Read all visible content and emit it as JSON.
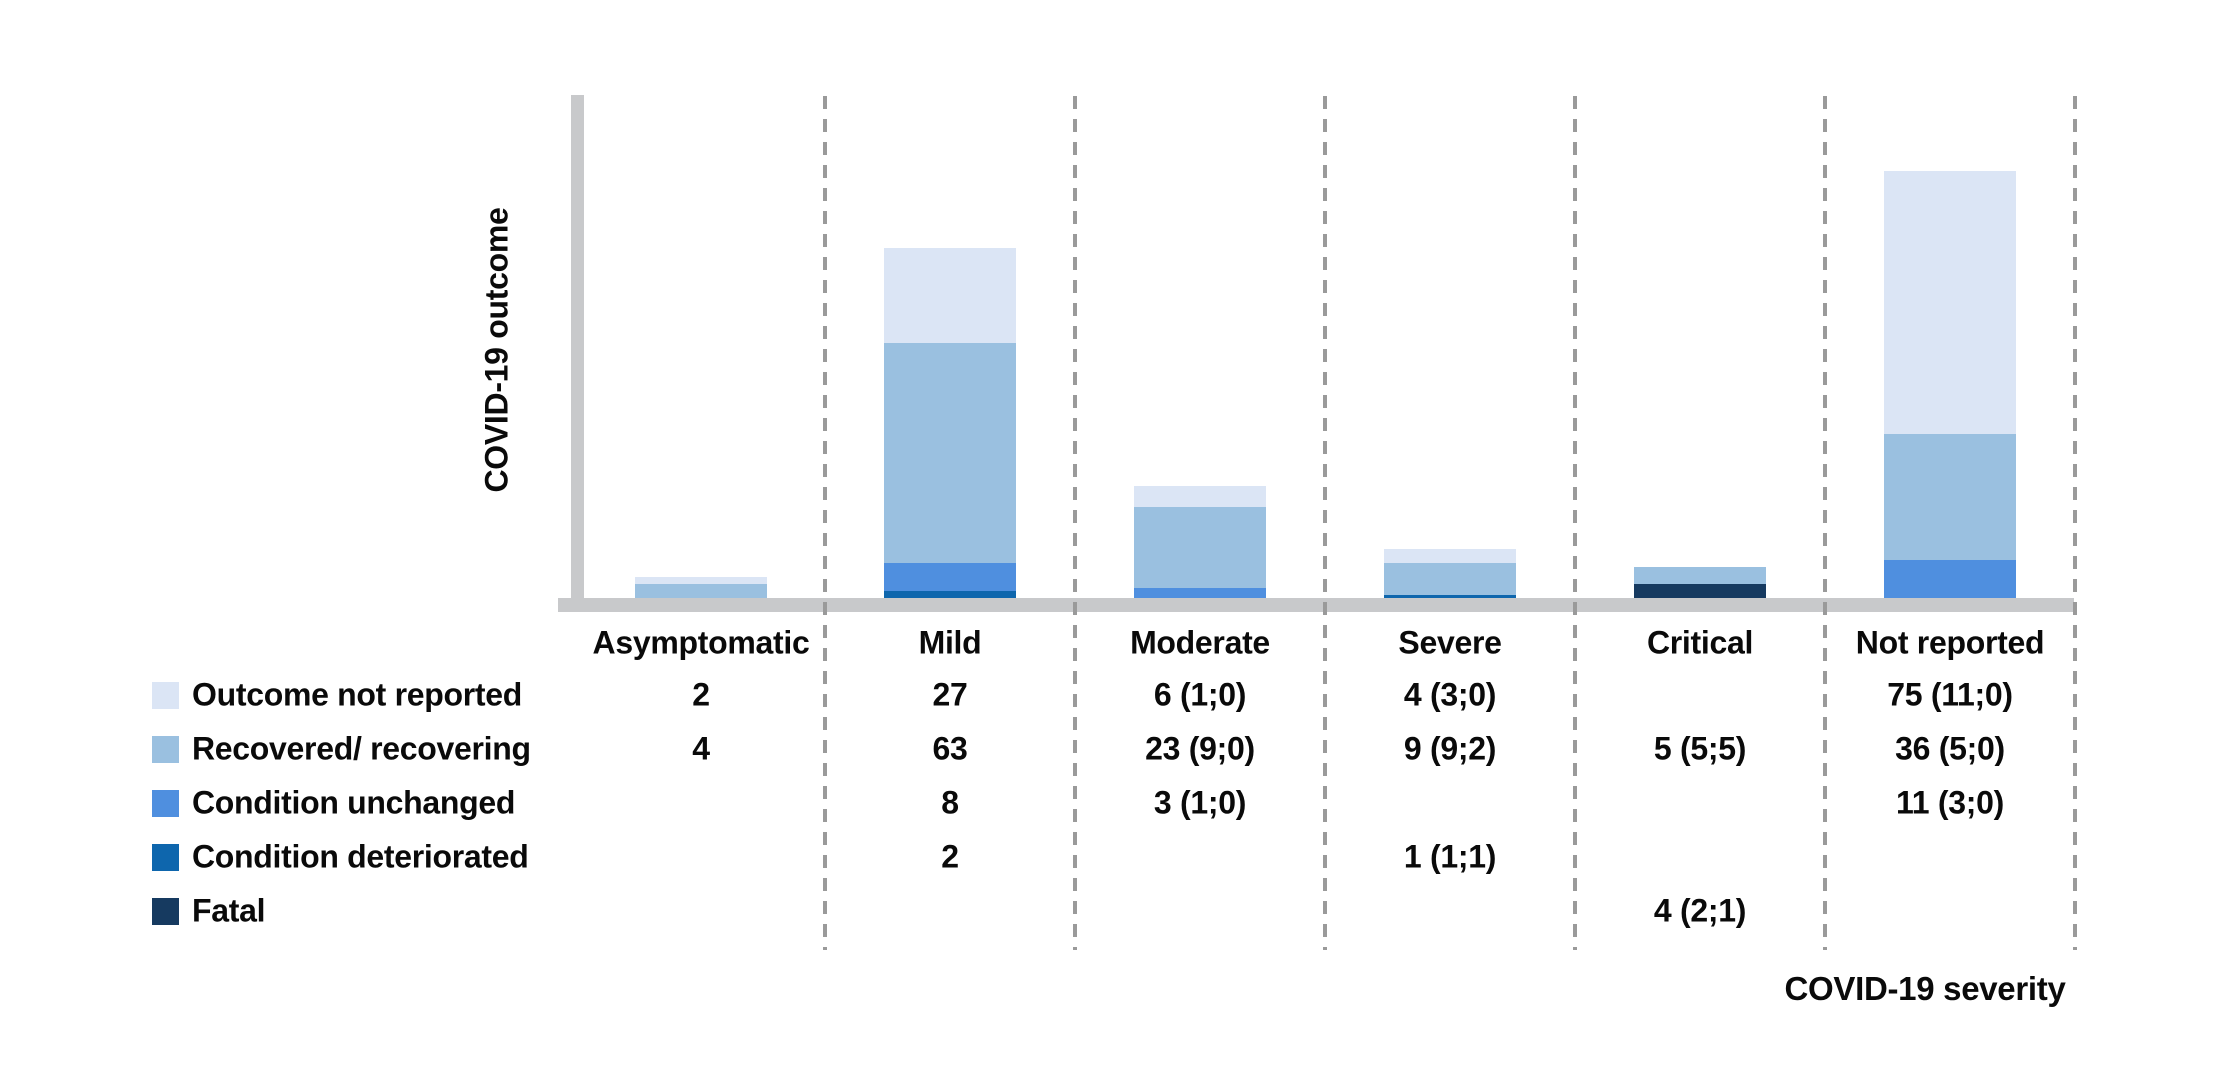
{
  "chart": {
    "y_axis_label": "COVID-19 outcome",
    "x_axis_label": "COVID-19 severity"
  },
  "chart_data": {
    "type": "bar",
    "stacked": true,
    "title": "",
    "xlabel": "COVID-19 severity",
    "ylabel": "COVID-19 outcome",
    "categories": [
      "Asymptomatic",
      "Mild",
      "Moderate",
      "Severe",
      "Critical",
      "Not reported"
    ],
    "series": [
      {
        "name": "Outcome not reported",
        "color": "#dbe5f5",
        "values": [
          2,
          27,
          6,
          4,
          0,
          75
        ],
        "cell_labels": [
          "2",
          "27",
          "6 (1;0)",
          "4 (3;0)",
          "",
          "75 (11;0)"
        ]
      },
      {
        "name": "Recovered/ recovering",
        "color": "#9ac0e0",
        "values": [
          4,
          63,
          23,
          9,
          5,
          36
        ],
        "cell_labels": [
          "4",
          "63",
          "23 (9;0)",
          "9 (9;2)",
          "5 (5;5)",
          "36 (5;0)"
        ]
      },
      {
        "name": "Condition unchanged",
        "color": "#4f8fdf",
        "values": [
          0,
          8,
          3,
          0,
          0,
          11
        ],
        "cell_labels": [
          "",
          "8",
          "3 (1;0)",
          "",
          "",
          "11 (3;0)"
        ]
      },
      {
        "name": "Condition deteriorated",
        "color": "#0e66ad",
        "values": [
          0,
          2,
          0,
          1,
          0,
          0
        ],
        "cell_labels": [
          "",
          "2",
          "",
          "1 (1;1)",
          "",
          ""
        ]
      },
      {
        "name": "Fatal",
        "color": "#163a60",
        "values": [
          0,
          0,
          0,
          0,
          4,
          0
        ],
        "cell_labels": [
          "",
          "",
          "",
          "",
          "4 (2;1)",
          ""
        ]
      }
    ],
    "stack_order_bottom_to_top": [
      "Fatal",
      "Condition deteriorated",
      "Condition unchanged",
      "Recovered/ recovering",
      "Outcome not reported"
    ],
    "legend_position": "bottom-left rows, acting as table row headers",
    "grid": "dashed vertical category separators",
    "axis_color": "#c8c9cb",
    "grid_color": "#9a9a9a",
    "text_color": "#0a0a0a"
  }
}
